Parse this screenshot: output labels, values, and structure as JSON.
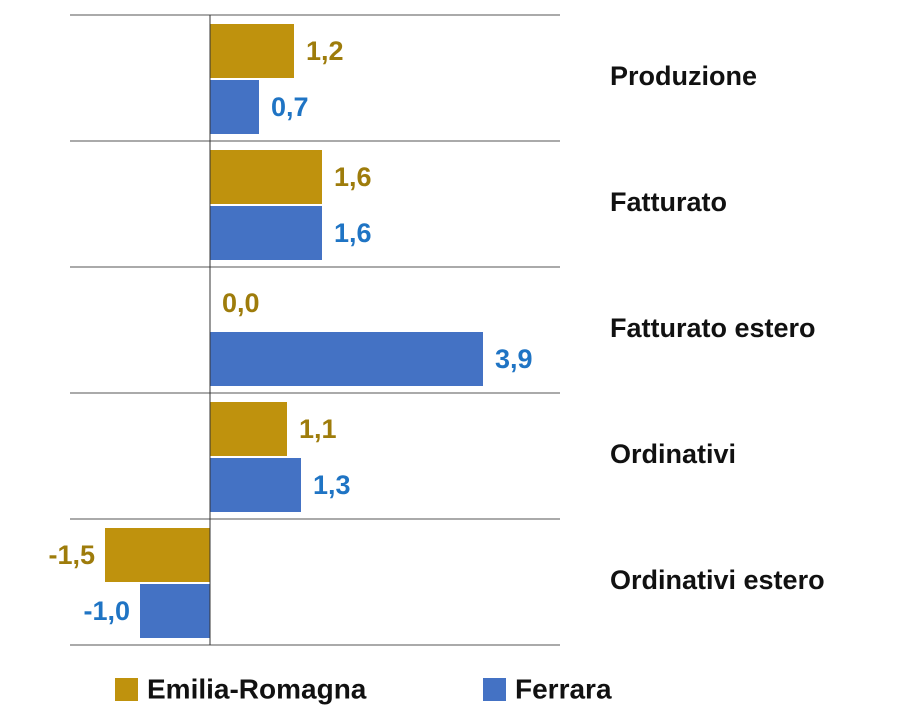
{
  "chart_data": {
    "type": "hbar",
    "categories": [
      "Produzione",
      "Fatturato",
      "Fatturato estero",
      "Ordinativi",
      "Ordinativi estero"
    ],
    "series": [
      {
        "name": "Emilia-Romagna",
        "color": "#bf920d",
        "label_color": "#9e7c0b",
        "values": [
          1.2,
          1.6,
          0.0,
          1.1,
          -1.5
        ],
        "value_labels": [
          "1,2",
          "1,6",
          "0,0",
          "1,1",
          "-1,5"
        ]
      },
      {
        "name": "Ferrara",
        "color": "#4472c4",
        "label_color": "#1f74c4",
        "values": [
          0.7,
          1.6,
          3.9,
          1.3,
          -1.0
        ],
        "value_labels": [
          "0,7",
          "1,6",
          "3,9",
          "1,3",
          "-1,0"
        ]
      }
    ],
    "xlim": [
      -2,
      5
    ],
    "grid": true
  }
}
